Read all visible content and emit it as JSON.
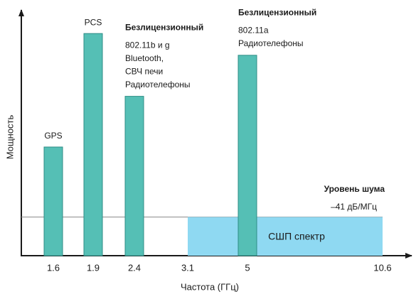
{
  "chart_data": {
    "type": "bar",
    "x_label": "Частота (ГГц)",
    "y_label": "Мощность",
    "categories": [
      "1.6",
      "1.9",
      "2.4",
      "3.1",
      "5",
      "10.6"
    ],
    "values": [
      45,
      92,
      66,
      null,
      83,
      null
    ],
    "color": "#55bfb5",
    "ylim": [
      0,
      100
    ],
    "bar_headers": [
      null,
      null,
      "Безлицензионный",
      null,
      "Безлицензионный",
      null
    ],
    "bar_labels": [
      [
        "GPS"
      ],
      [
        "PCS"
      ],
      [
        "802.11b и g",
        "Bluetooth,",
        "СВЧ печи",
        "Радиотелефоны"
      ],
      null,
      [
        "802.11a",
        "Радиотелефоны"
      ],
      null
    ],
    "uwb": {
      "label": "СШП спектр",
      "level": 16,
      "color": "#8fd9f2"
    },
    "noise": {
      "title": "Уровень шума",
      "label": "–41 дБ/МГц"
    }
  }
}
